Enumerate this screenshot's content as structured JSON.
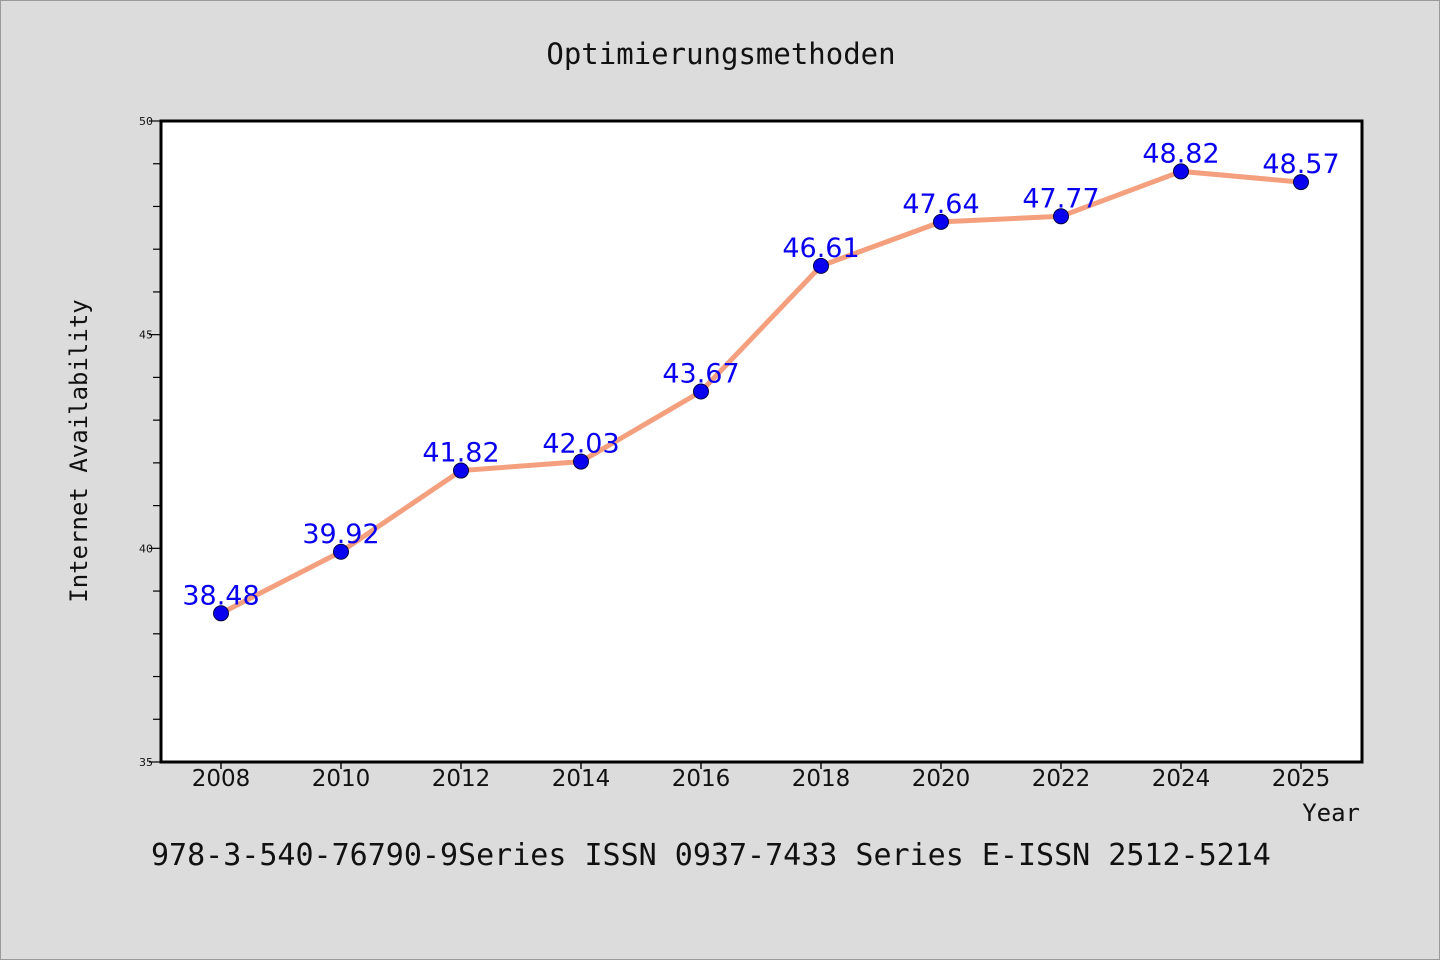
{
  "chart_data": {
    "type": "line",
    "title": "Optimierungsmethoden",
    "xlabel": "Year",
    "ylabel": "Internet Availability",
    "categories": [
      "2008",
      "2010",
      "2012",
      "2014",
      "2016",
      "2018",
      "2020",
      "2022",
      "2024",
      "2025"
    ],
    "series": [
      {
        "values": [
          38.48,
          39.92,
          41.82,
          42.03,
          43.67,
          46.61,
          47.64,
          47.77,
          48.82,
          48.57
        ],
        "labels": [
          "38.48",
          "39.92",
          "41.82",
          "42.03",
          "43.67",
          "46.61",
          "47.64",
          "47.77",
          "48.82",
          "48.57"
        ]
      }
    ],
    "ylim": [
      35,
      50
    ],
    "yticks": [
      "35",
      "40",
      "45",
      "50"
    ],
    "grid": false,
    "line_color": "#f4a07e",
    "marker_color": "#0a00f0",
    "label_color": "#0a00f0"
  },
  "footer_text": "978-3-540-76790-9Series ISSN 0937-7433 Series E-ISSN 2512-5214"
}
